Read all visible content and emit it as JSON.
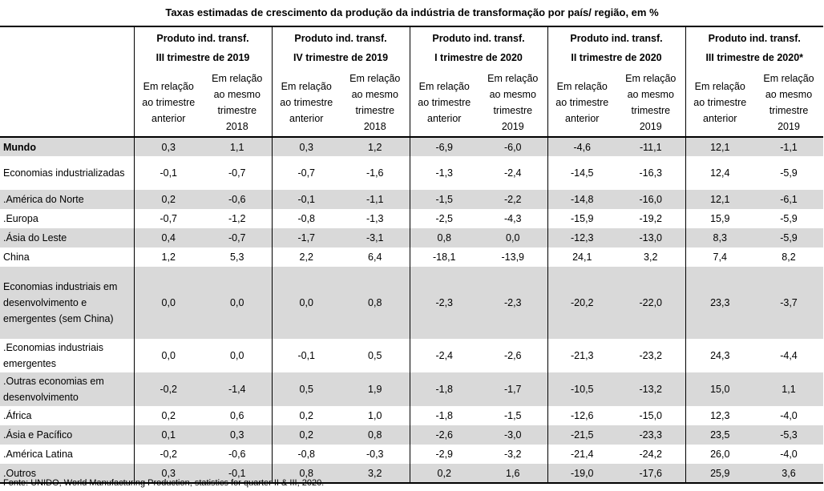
{
  "title": "Taxas estimadas de crescimento da produção da indústria de transformação por país/ região, em %",
  "groups": [
    {
      "line1": "Produto ind. transf.",
      "line2": "III trimestre de 2019",
      "sub1": "Em relação ao trimestre anterior",
      "sub2": "Em relação ao mesmo trimestre 2018"
    },
    {
      "line1": "Produto ind. transf.",
      "line2": "IV trimestre de 2019",
      "sub1": "Em relação ao trimestre anterior",
      "sub2": "Em relação ao mesmo trimestre 2018"
    },
    {
      "line1": "Produto ind. transf.",
      "line2": "I trimestre de 2020",
      "sub1": "Em relação ao trimestre anterior",
      "sub2": "Em relação ao mesmo trimestre 2019"
    },
    {
      "line1": "Produto ind. transf.",
      "line2": "II trimestre de 2020",
      "sub1": "Em relação ao trimestre anterior",
      "sub2": "Em relação ao mesmo trimestre 2019"
    },
    {
      "line1": "Produto ind. transf.",
      "line2": "III trimestre de 2020*",
      "sub1": "Em relação ao trimestre anterior",
      "sub2": "Em relação ao mesmo trimestre 2019"
    }
  ],
  "rows": [
    {
      "label": "Mundo",
      "values": [
        "0,3",
        "1,1",
        "0,3",
        "1,2",
        "-6,9",
        "-6,0",
        "-4,6",
        "-11,1",
        "12,1",
        "-1,1"
      ]
    },
    {
      "label": "Economias industrializadas",
      "values": [
        "-0,1",
        "-0,7",
        "-0,7",
        "-1,6",
        "-1,3",
        "-2,4",
        "-14,5",
        "-16,3",
        "12,4",
        "-5,9"
      ]
    },
    {
      "label": ".América do Norte",
      "values": [
        "0,2",
        "-0,6",
        "-0,1",
        "-1,1",
        "-1,5",
        "-2,2",
        "-14,8",
        "-16,0",
        "12,1",
        "-6,1"
      ]
    },
    {
      "label": ".Europa",
      "values": [
        "-0,7",
        "-1,2",
        "-0,8",
        "-1,3",
        "-2,5",
        "-4,3",
        "-15,9",
        "-19,2",
        "15,9",
        "-5,9"
      ]
    },
    {
      "label": ".Ásia do Leste",
      "values": [
        "0,4",
        "-0,7",
        "-1,7",
        "-3,1",
        "0,8",
        "0,0",
        "-12,3",
        "-13,0",
        "8,3",
        "-5,9"
      ]
    },
    {
      "label": "China",
      "values": [
        "1,2",
        "5,3",
        "2,2",
        "6,4",
        "-18,1",
        "-13,9",
        "24,1",
        "3,2",
        "7,4",
        "8,2"
      ]
    },
    {
      "label": "Economias industriais em desenvolvimento e emergentes (sem China)",
      "values": [
        "0,0",
        "0,0",
        "0,0",
        "0,8",
        "-2,3",
        "-2,3",
        "-20,2",
        "-22,0",
        "23,3",
        "-3,7"
      ]
    },
    {
      "label": ".Economias industriais emergentes",
      "values": [
        "0,0",
        "0,0",
        "-0,1",
        "0,5",
        "-2,4",
        "-2,6",
        "-21,3",
        "-23,2",
        "24,3",
        "-4,4"
      ]
    },
    {
      "label": ".Outras economias em desenvolvimento",
      "values": [
        "-0,2",
        "-1,4",
        "0,5",
        "1,9",
        "-1,8",
        "-1,7",
        "-10,5",
        "-13,2",
        "15,0",
        "1,1"
      ]
    },
    {
      "label": ".África",
      "values": [
        "0,2",
        "0,6",
        "0,2",
        "1,0",
        "-1,8",
        "-1,5",
        "-12,6",
        "-15,0",
        "12,3",
        "-4,0"
      ]
    },
    {
      "label": ".Ásia e Pacífico",
      "values": [
        "0,1",
        "0,3",
        "0,2",
        "0,8",
        "-2,6",
        "-3,0",
        "-21,5",
        "-23,3",
        "23,5",
        "-5,3"
      ]
    },
    {
      "label": ".América Latina",
      "values": [
        "-0,2",
        "-0,6",
        "-0,8",
        "-0,3",
        "-2,9",
        "-3,2",
        "-21,4",
        "-24,2",
        "26,0",
        "-4,0"
      ]
    },
    {
      "label": ".Outros",
      "values": [
        "0,3",
        "-0,1",
        "0,8",
        "3,2",
        "0,2",
        "1,6",
        "-19,0",
        "-17,6",
        "25,9",
        "3,6"
      ]
    }
  ],
  "source": "Fonte: UNIDO, World Manufacturing Production, statistics for quarter II & III, 2020.",
  "colors": {
    "shade": "#d9d9d9",
    "rule": "#000000"
  }
}
